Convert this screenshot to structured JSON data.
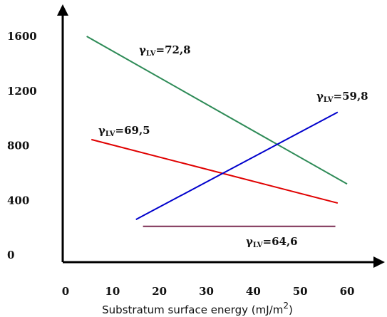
{
  "chart_data": {
    "type": "line",
    "xlabel": "Substratum surface energy (mJ/m",
    "xlabel_superscript": "2",
    "xlabel_close": ")",
    "ylabel": "",
    "xlim": [
      0,
      60
    ],
    "ylim": [
      0,
      1600
    ],
    "x_ticks": [
      "0",
      "10",
      "20",
      "30",
      "40",
      "50",
      "60"
    ],
    "y_ticks": [
      "0",
      "400",
      "800",
      "1200",
      "1600"
    ],
    "grid": false,
    "series": [
      {
        "name": "γLV=72,8",
        "gamma_symbol": "γ",
        "subscript": "LV",
        "value_text": "=72,8",
        "color": "#2e8b57",
        "points": [
          [
            4.5,
            1600
          ],
          [
            60,
            520
          ]
        ]
      },
      {
        "name": "γLV=69,5",
        "gamma_symbol": "γ",
        "subscript": "LV",
        "value_text": "=69,5",
        "color": "#e00000",
        "points": [
          [
            5.5,
            845
          ],
          [
            58,
            380
          ]
        ]
      },
      {
        "name": "γLV=59,8",
        "gamma_symbol": "γ",
        "subscript": "LV",
        "value_text": "=59,8",
        "color": "#0000cc",
        "points": [
          [
            15,
            260
          ],
          [
            58,
            1045
          ]
        ]
      },
      {
        "name": "γLV=64,6",
        "gamma_symbol": "γ",
        "subscript": "LV",
        "value_text": "=64,6",
        "color": "#7b2d52",
        "points": [
          [
            16.5,
            210
          ],
          [
            57.5,
            210
          ]
        ]
      }
    ]
  }
}
